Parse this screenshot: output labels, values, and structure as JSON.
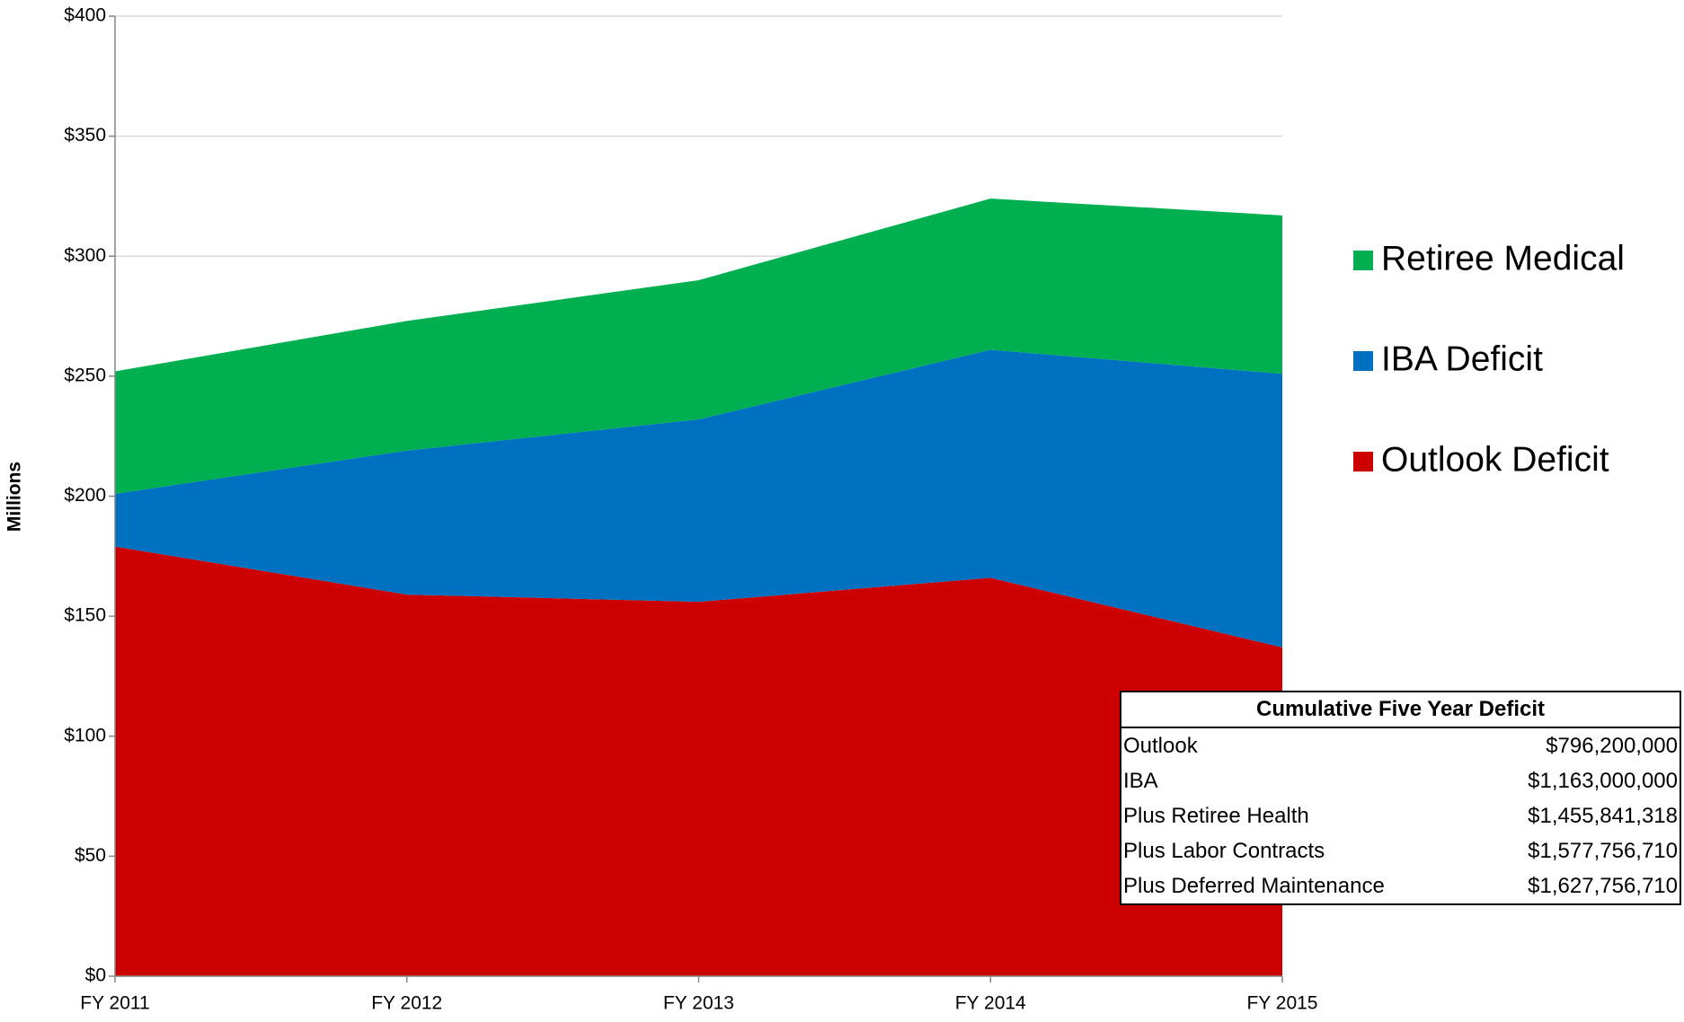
{
  "chart_data": {
    "type": "stacked-area",
    "y_label": "Millions",
    "categories": [
      "FY 2011",
      "FY 2012",
      "FY 2013",
      "FY 2014",
      "FY 2015"
    ],
    "series": [
      {
        "name": "Outlook Deficit",
        "color": "#cc0000",
        "values": [
          179,
          159,
          156,
          166,
          137
        ]
      },
      {
        "name": "IBA Deficit",
        "color": "#0070c0",
        "values": [
          22,
          60,
          76,
          95,
          114
        ]
      },
      {
        "name": "Retiree Medical",
        "color": "#00b050",
        "values": [
          51,
          54,
          58,
          63,
          66
        ]
      }
    ],
    "ylim": [
      0,
      400
    ],
    "yticks": [
      {
        "value": 0,
        "label": "$0"
      },
      {
        "value": 50,
        "label": "$50"
      },
      {
        "value": 100,
        "label": "$100"
      },
      {
        "value": 150,
        "label": "$150"
      },
      {
        "value": 200,
        "label": "$200"
      },
      {
        "value": 250,
        "label": "$250"
      },
      {
        "value": 300,
        "label": "$300"
      },
      {
        "value": 350,
        "label": "$350"
      },
      {
        "value": 400,
        "label": "$400"
      }
    ],
    "grid": true,
    "legend": "right"
  },
  "table": {
    "title": "Cumulative Five Year Deficit",
    "rows": [
      [
        "Outlook",
        "$796,200,000"
      ],
      [
        "IBA",
        "$1,163,000,000"
      ],
      [
        "Plus Retiree Health",
        "$1,455,841,318"
      ],
      [
        "Plus Labor Contracts",
        "$1,577,756,710"
      ],
      [
        "Plus Deferred Maintenance",
        "$1,627,756,710"
      ]
    ]
  }
}
